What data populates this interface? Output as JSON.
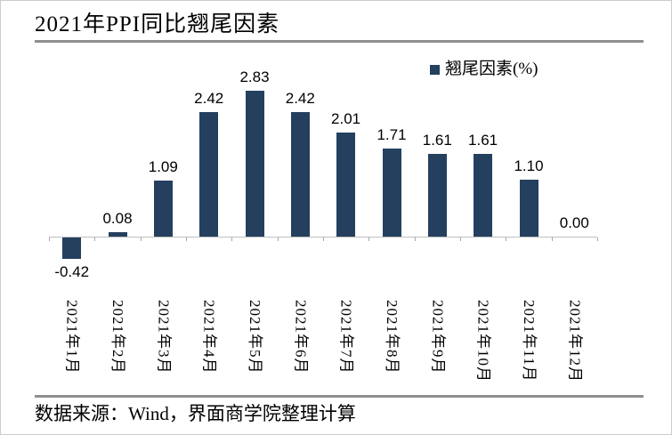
{
  "title": "2021年PPI同比翘尾因素",
  "legend": {
    "label": "翘尾因素(%)"
  },
  "footer": {
    "source_text": "数据来源：Wind，界面商学院整理计算"
  },
  "colors": {
    "bar": "#24405E",
    "rule": "#8F8F8F",
    "axis_line": "#BFBFBF",
    "tick": "#A9A9A9"
  },
  "chart_data": {
    "type": "bar",
    "title": "2021年PPI同比翘尾因素",
    "series_name": "翘尾因素(%)",
    "unit": "%",
    "categories": [
      "2021年1月",
      "2021年2月",
      "2021年3月",
      "2021年4月",
      "2021年5月",
      "2021年6月",
      "2021年7月",
      "2021年8月",
      "2021年9月",
      "2021年10月",
      "2021年11月",
      "2021年12月"
    ],
    "values": [
      -0.42,
      0.08,
      1.09,
      2.42,
      2.83,
      2.42,
      2.01,
      1.71,
      1.61,
      1.61,
      1.1,
      0
    ],
    "data_labels": [
      "-0.42",
      "0.08",
      "1.09",
      "2.42",
      "2.83",
      "2.42",
      "2.01",
      "1.71",
      "1.61",
      "1.61",
      "1.10",
      "0.00"
    ],
    "bar_color": "#24405E",
    "ylim": [
      -0.6,
      3.0
    ],
    "grid": false,
    "legend_position": "top-right",
    "xlabel": "",
    "ylabel": ""
  }
}
